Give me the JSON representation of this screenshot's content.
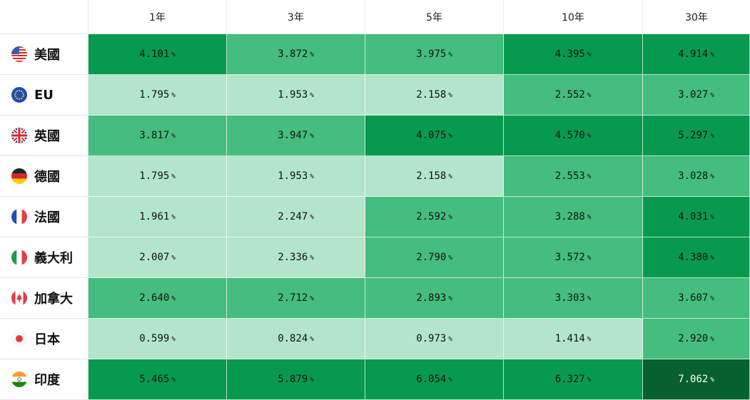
{
  "columns": [
    "1年",
    "3年",
    "5年",
    "10年",
    "30年"
  ],
  "unit": "%",
  "level_colors": {
    "l1": "#b3e5cc",
    "l2": "#44bd7e",
    "l3": "#079a4e",
    "l4": "#06602f"
  },
  "rows": [
    {
      "name": "美國",
      "flag": "us-flag-icon",
      "values": [
        "4.101",
        "3.872",
        "3.975",
        "4.395",
        "4.914"
      ],
      "levels": [
        "l3",
        "l2",
        "l2",
        "l3",
        "l3"
      ]
    },
    {
      "name": "EU",
      "flag": "eu-flag-icon",
      "values": [
        "1.795",
        "1.953",
        "2.158",
        "2.552",
        "3.027"
      ],
      "levels": [
        "l1",
        "l1",
        "l1",
        "l2",
        "l2"
      ]
    },
    {
      "name": "英國",
      "flag": "uk-flag-icon",
      "values": [
        "3.817",
        "3.947",
        "4.075",
        "4.570",
        "5.297"
      ],
      "levels": [
        "l2",
        "l2",
        "l3",
        "l3",
        "l3"
      ]
    },
    {
      "name": "德國",
      "flag": "germany-flag-icon",
      "values": [
        "1.795",
        "1.953",
        "2.158",
        "2.553",
        "3.028"
      ],
      "levels": [
        "l1",
        "l1",
        "l1",
        "l2",
        "l2"
      ]
    },
    {
      "name": "法國",
      "flag": "france-flag-icon",
      "values": [
        "1.961",
        "2.247",
        "2.592",
        "3.288",
        "4.031"
      ],
      "levels": [
        "l1",
        "l1",
        "l2",
        "l2",
        "l3"
      ]
    },
    {
      "name": "義大利",
      "flag": "italy-flag-icon",
      "values": [
        "2.007",
        "2.336",
        "2.790",
        "3.572",
        "4.380"
      ],
      "levels": [
        "l1",
        "l1",
        "l2",
        "l2",
        "l3"
      ]
    },
    {
      "name": "加拿大",
      "flag": "canada-flag-icon",
      "values": [
        "2.640",
        "2.712",
        "2.893",
        "3.303",
        "3.607"
      ],
      "levels": [
        "l2",
        "l2",
        "l2",
        "l2",
        "l2"
      ]
    },
    {
      "name": "日本",
      "flag": "japan-flag-icon",
      "values": [
        "0.599",
        "0.824",
        "0.973",
        "1.414",
        "2.920"
      ],
      "levels": [
        "l1",
        "l1",
        "l1",
        "l1",
        "l2"
      ]
    },
    {
      "name": "印度",
      "flag": "india-flag-icon",
      "values": [
        "5.465",
        "5.879",
        "6.054",
        "6.327",
        "7.062"
      ],
      "levels": [
        "l3",
        "l3",
        "l3",
        "l3",
        "l4"
      ]
    }
  ]
}
